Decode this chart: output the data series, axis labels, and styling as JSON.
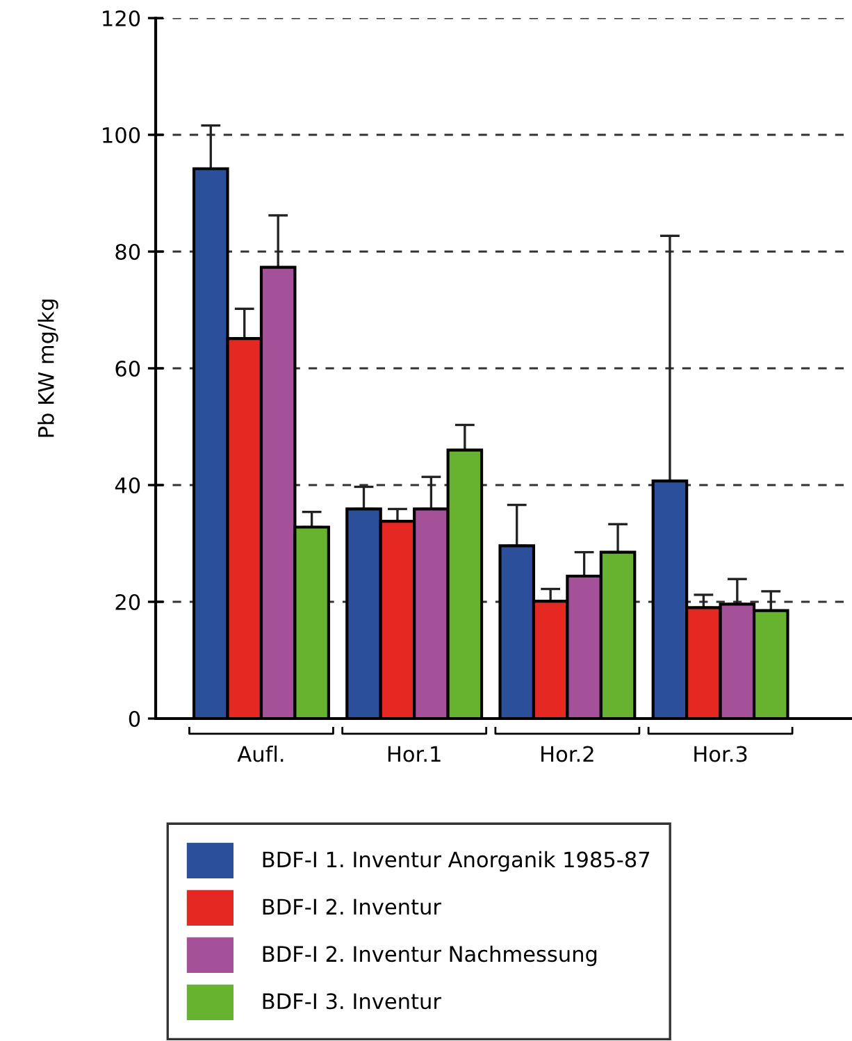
{
  "chart_data": {
    "type": "bar",
    "ylabel": "Pb KW mg/kg",
    "categories": [
      "Aufl.",
      "Hor.1",
      "Hor.2",
      "Hor.3"
    ],
    "series": [
      {
        "name": "BDF-I 1. Inventur Anorganik 1985-87",
        "color": "#2c4f9b",
        "values": [
          94.2,
          35.9,
          29.6,
          40.7
        ],
        "errors": [
          [
            94.2,
            101.6
          ],
          [
            35.9,
            39.7
          ],
          [
            29.6,
            36.6
          ],
          [
            40.7,
            82.7
          ]
        ]
      },
      {
        "name": "BDF-I 2. Inventur",
        "color": "#e52922",
        "values": [
          65.1,
          33.8,
          20.1,
          19.0
        ],
        "errors": [
          [
            65.1,
            70.2
          ],
          [
            33.8,
            35.9
          ],
          [
            20.1,
            22.2
          ],
          [
            19.0,
            21.2
          ]
        ]
      },
      {
        "name": "BDF-I 2. Inventur Nachmessung",
        "color": "#a5519a",
        "values": [
          77.3,
          35.9,
          24.4,
          19.6
        ],
        "errors": [
          [
            77.3,
            86.2
          ],
          [
            35.9,
            41.4
          ],
          [
            24.4,
            28.5
          ],
          [
            19.6,
            23.9
          ]
        ]
      },
      {
        "name": "BDF-I 3. Inventur",
        "color": "#67b32f",
        "values": [
          32.8,
          46.0,
          28.5,
          18.5
        ],
        "errors": [
          [
            32.8,
            35.4
          ],
          [
            46.0,
            50.3
          ],
          [
            28.5,
            33.3
          ],
          [
            18.5,
            21.8
          ]
        ]
      }
    ],
    "ylim": [
      0,
      120
    ],
    "yticks": [
      0,
      20,
      40,
      60,
      80,
      100,
      120
    ],
    "grid": "y",
    "legend": "bottom"
  }
}
